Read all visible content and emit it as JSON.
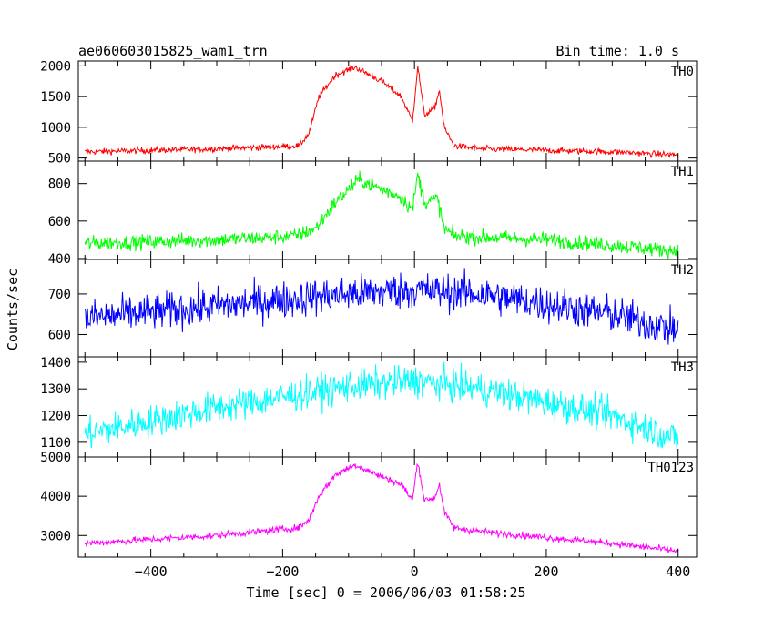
{
  "header": {
    "title": "ae060603015825_wam1_trn",
    "bin_time": "Bin time: 1.0 s"
  },
  "xaxis": {
    "label": "Time [sec] 0 = 2006/06/03 01:58:25",
    "range": [
      -510,
      428
    ],
    "ticks": [
      -400,
      -200,
      0,
      200,
      400
    ],
    "tick_labels": [
      "−400",
      "−200",
      "0",
      "200",
      "400"
    ]
  },
  "ylabel": "Counts/sec",
  "chart_data": {
    "type": "line",
    "x_range": [
      -500,
      400
    ],
    "x_step_sec": 1.0,
    "panels": [
      {
        "name": "TH0",
        "color": "#ff0000",
        "ylim": [
          450,
          2080
        ],
        "ticks": [
          500,
          1000,
          1500,
          2000
        ],
        "tick_labels": [
          "500",
          "1000",
          "1500",
          "2000"
        ],
        "profile": [
          [
            -500,
            600
          ],
          [
            -300,
            650
          ],
          [
            -175,
            700
          ],
          [
            -160,
            900
          ],
          [
            -145,
            1500
          ],
          [
            -120,
            1850
          ],
          [
            -90,
            1980
          ],
          [
            -50,
            1750
          ],
          [
            -20,
            1500
          ],
          [
            -3,
            1100
          ],
          [
            5,
            2000
          ],
          [
            15,
            1200
          ],
          [
            30,
            1300
          ],
          [
            38,
            1600
          ],
          [
            45,
            1000
          ],
          [
            60,
            700
          ],
          [
            100,
            650
          ],
          [
            300,
            600
          ],
          [
            400,
            550
          ]
        ],
        "noise": 35
      },
      {
        "name": "TH1",
        "color": "#00ff00",
        "ylim": [
          395,
          920
        ],
        "ticks": [
          400,
          600,
          800
        ],
        "tick_labels": [
          "400",
          "600",
          "800"
        ],
        "profile": [
          [
            -500,
            480
          ],
          [
            -300,
            500
          ],
          [
            -180,
            520
          ],
          [
            -150,
            560
          ],
          [
            -120,
            700
          ],
          [
            -85,
            820
          ],
          [
            -50,
            770
          ],
          [
            -20,
            730
          ],
          [
            -3,
            660
          ],
          [
            5,
            850
          ],
          [
            15,
            700
          ],
          [
            35,
            720
          ],
          [
            45,
            560
          ],
          [
            60,
            520
          ],
          [
            200,
            500
          ],
          [
            400,
            440
          ]
        ],
        "noise": 28
      },
      {
        "name": "TH2",
        "color": "#0000ff",
        "ylim": [
          545,
          785
        ],
        "ticks": [
          600,
          700
        ],
        "tick_labels": [
          "600",
          "700"
        ],
        "profile": [
          [
            -500,
            640
          ],
          [
            -300,
            670
          ],
          [
            -100,
            700
          ],
          [
            0,
            710
          ],
          [
            100,
            700
          ],
          [
            300,
            650
          ],
          [
            400,
            610
          ]
        ],
        "noise": 32
      },
      {
        "name": "TH3",
        "color": "#00ffff",
        "ylim": [
          1045,
          1420
        ],
        "ticks": [
          1100,
          1200,
          1300,
          1400
        ],
        "tick_labels": [
          "1100",
          "1200",
          "1300",
          "1400"
        ],
        "profile": [
          [
            -500,
            1130
          ],
          [
            -300,
            1230
          ],
          [
            -100,
            1310
          ],
          [
            0,
            1330
          ],
          [
            100,
            1300
          ],
          [
            300,
            1200
          ],
          [
            400,
            1110
          ]
        ],
        "noise": 42
      },
      {
        "name": "TH0123",
        "color": "#ff00ff",
        "ylim": [
          2450,
          5000
        ],
        "ticks": [
          3000,
          4000,
          5000
        ],
        "tick_labels": [
          "3000",
          "4000",
          "5000"
        ],
        "profile": [
          [
            -500,
            2800
          ],
          [
            -300,
            3000
          ],
          [
            -175,
            3200
          ],
          [
            -160,
            3400
          ],
          [
            -145,
            4000
          ],
          [
            -120,
            4550
          ],
          [
            -90,
            4800
          ],
          [
            -50,
            4500
          ],
          [
            -20,
            4300
          ],
          [
            -3,
            3900
          ],
          [
            5,
            4900
          ],
          [
            15,
            3900
          ],
          [
            30,
            3950
          ],
          [
            38,
            4300
          ],
          [
            45,
            3600
          ],
          [
            60,
            3200
          ],
          [
            100,
            3100
          ],
          [
            300,
            2800
          ],
          [
            400,
            2600
          ]
        ],
        "noise": 60
      }
    ]
  }
}
